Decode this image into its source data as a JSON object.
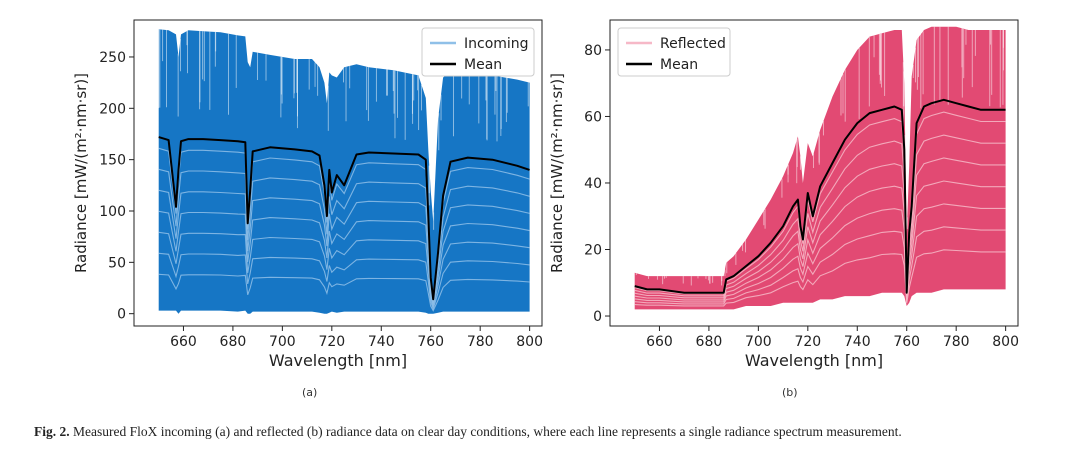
{
  "caption": {
    "label": "Fig. 2.",
    "text": "Measured FloX incoming (a) and reflected (b) radiance data on clear day conditions, where each line represents a single radiance spectrum measurement."
  },
  "chart_data": [
    {
      "id": "a",
      "panel_label": "(a)",
      "type": "line",
      "title": "",
      "xlabel": "Wavelength [nm]",
      "ylabel": "Radiance [mW/(m²·nm·sr)]",
      "xlim": [
        640,
        805
      ],
      "ylim": [
        -12,
        286
      ],
      "xticks": [
        660,
        680,
        700,
        720,
        740,
        760,
        780,
        800
      ],
      "yticks": [
        0,
        50,
        100,
        150,
        200,
        250
      ],
      "legend": {
        "position": "top-right",
        "entries": [
          "Incoming",
          "Mean"
        ]
      },
      "colors": {
        "band": "#0a6fc2",
        "band_light": "#8fc0e8",
        "mean": "#000000"
      },
      "x": [
        650,
        654,
        657,
        658,
        659,
        662,
        668,
        675,
        682,
        685,
        686,
        687,
        688,
        695,
        705,
        712,
        715,
        717,
        718,
        719,
        720,
        722,
        725,
        730,
        735,
        745,
        755,
        758,
        759,
        760,
        761,
        763,
        765,
        768,
        775,
        785,
        795,
        800
      ],
      "series": [
        {
          "name": "Incoming (max)",
          "values": [
            277,
            276,
            272,
            250,
            272,
            276,
            275,
            274,
            271,
            270,
            245,
            240,
            255,
            252,
            248,
            248,
            240,
            225,
            205,
            235,
            232,
            230,
            240,
            243,
            240,
            237,
            232,
            210,
            160,
            120,
            90,
            190,
            230,
            236,
            235,
            232,
            228,
            225
          ]
        },
        {
          "name": "Incoming (min)",
          "values": [
            3,
            3,
            3,
            0,
            3,
            3,
            3,
            3,
            2,
            3,
            0,
            0,
            2,
            2,
            2,
            2,
            1,
            0,
            0,
            1,
            2,
            1,
            2,
            2,
            2,
            2,
            2,
            1,
            0,
            0,
            0,
            1,
            2,
            2,
            2,
            2,
            2,
            2
          ]
        },
        {
          "name": "Mean",
          "values": [
            172,
            169,
            104,
            140,
            168,
            170,
            170,
            169,
            168,
            167,
            88,
            120,
            158,
            162,
            160,
            158,
            154,
            125,
            95,
            140,
            118,
            135,
            125,
            155,
            157,
            156,
            155,
            150,
            95,
            35,
            14,
            60,
            115,
            148,
            152,
            150,
            144,
            140
          ]
        }
      ]
    },
    {
      "id": "b",
      "panel_label": "(b)",
      "type": "line",
      "title": "",
      "xlabel": "Wavelength [nm]",
      "ylabel": "Radiance [mW/(m²·nm·sr)]",
      "xlim": [
        640,
        805
      ],
      "ylim": [
        -3,
        89
      ],
      "xticks": [
        660,
        680,
        700,
        720,
        740,
        760,
        780,
        800
      ],
      "yticks": [
        0,
        20,
        40,
        60,
        80
      ],
      "legend": {
        "position": "top-left",
        "entries": [
          "Reflected",
          "Mean"
        ]
      },
      "colors": {
        "band": "#e0406b",
        "band_light": "#f6b8c7",
        "mean": "#000000"
      },
      "x": [
        650,
        655,
        660,
        670,
        680,
        686,
        687,
        690,
        695,
        700,
        705,
        710,
        714,
        716,
        717,
        718,
        720,
        722,
        725,
        730,
        735,
        740,
        745,
        750,
        755,
        758,
        759,
        760,
        761,
        762,
        764,
        767,
        770,
        775,
        780,
        785,
        790,
        795,
        800
      ],
      "series": [
        {
          "name": "Reflected (max)",
          "values": [
            13,
            12,
            12,
            12,
            12,
            12,
            16,
            18,
            23,
            29,
            35,
            42,
            49,
            54,
            48,
            40,
            52,
            48,
            56,
            66,
            74,
            80,
            84,
            85,
            86,
            86,
            70,
            25,
            45,
            72,
            83,
            86,
            87,
            87,
            87,
            86,
            86,
            86,
            86
          ]
        },
        {
          "name": "Reflected (min)",
          "values": [
            2,
            2,
            2,
            2,
            2,
            2,
            2,
            2,
            3,
            3,
            3,
            4,
            4,
            4,
            4,
            4,
            4,
            4,
            5,
            5,
            6,
            6,
            6,
            7,
            7,
            7,
            6,
            3,
            4,
            6,
            7,
            7,
            7,
            8,
            8,
            8,
            8,
            8,
            8
          ]
        },
        {
          "name": "Mean",
          "values": [
            9,
            8,
            8,
            7,
            7,
            7,
            11,
            12,
            15,
            18,
            22,
            27,
            33,
            35,
            27,
            23,
            37,
            30,
            39,
            46,
            53,
            58,
            61,
            62,
            63,
            62,
            50,
            7,
            25,
            33,
            58,
            63,
            64,
            65,
            64,
            63,
            62,
            62,
            62
          ]
        }
      ]
    }
  ]
}
